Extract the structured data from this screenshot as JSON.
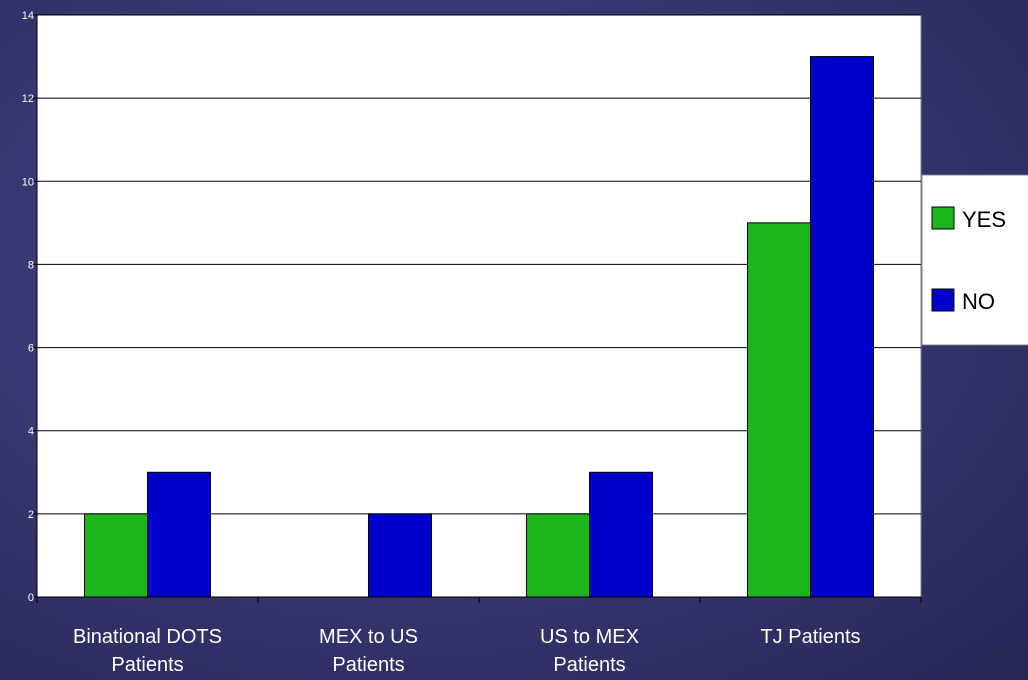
{
  "chart_data": {
    "type": "bar",
    "categories": [
      [
        "Binational DOTS",
        "Patients"
      ],
      [
        "MEX to US",
        "Patients"
      ],
      [
        "US to MEX",
        "Patients"
      ],
      [
        "TJ Patients"
      ]
    ],
    "series": [
      {
        "name": "YES",
        "color": "#1eb41e",
        "values": [
          2,
          0,
          2,
          9
        ]
      },
      {
        "name": "NO",
        "color": "#0000cc",
        "values": [
          3,
          2,
          3,
          13
        ]
      }
    ],
    "ylim": [
      0,
      14
    ],
    "yticks": [
      "0",
      "2",
      "4",
      "6",
      "8",
      "10",
      "12",
      "14"
    ],
    "grid": true,
    "legend_position": "right",
    "plot_background": "#ffffff"
  }
}
